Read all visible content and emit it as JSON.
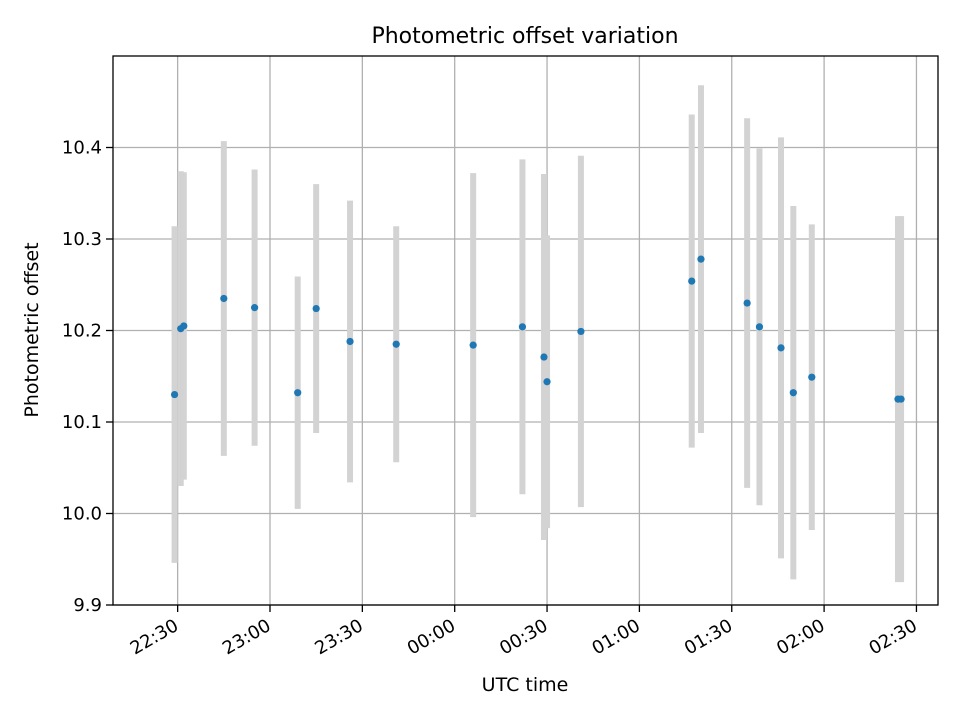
{
  "chart_data": {
    "type": "scatter",
    "title": "Photometric offset variation",
    "xlabel": "UTC time",
    "ylabel": "Photometric offset",
    "grid": true,
    "ylim": [
      9.9,
      10.5
    ],
    "xlim": [
      "22:09",
      "02:37"
    ],
    "x_tick_labels": [
      "22:30",
      "23:00",
      "23:30",
      "00:00",
      "00:30",
      "01:00",
      "01:30",
      "02:00",
      "02:30"
    ],
    "y_tick_labels": [
      "9.9",
      "10.0",
      "10.1",
      "10.2",
      "10.3",
      "10.4"
    ],
    "marker_color": "#1f77b4",
    "errorbar_color": "#d3d3d3",
    "points": [
      {
        "time": "22:29",
        "y": 10.13,
        "err": 0.184
      },
      {
        "time": "22:31",
        "y": 10.202,
        "err": 0.172
      },
      {
        "time": "22:32",
        "y": 10.205,
        "err": 0.168
      },
      {
        "time": "22:45",
        "y": 10.235,
        "err": 0.172
      },
      {
        "time": "22:55",
        "y": 10.225,
        "err": 0.151
      },
      {
        "time": "23:09",
        "y": 10.132,
        "err": 0.127
      },
      {
        "time": "23:15",
        "y": 10.224,
        "err": 0.136
      },
      {
        "time": "23:26",
        "y": 10.188,
        "err": 0.154
      },
      {
        "time": "23:41",
        "y": 10.185,
        "err": 0.129
      },
      {
        "time": "00:06",
        "y": 10.184,
        "err": 0.188
      },
      {
        "time": "00:22",
        "y": 10.204,
        "err": 0.183
      },
      {
        "time": "00:29",
        "y": 10.171,
        "err": 0.2
      },
      {
        "time": "00:30",
        "y": 10.144,
        "err": 0.16
      },
      {
        "time": "00:41",
        "y": 10.199,
        "err": 0.192
      },
      {
        "time": "01:17",
        "y": 10.254,
        "err": 0.182
      },
      {
        "time": "01:20",
        "y": 10.278,
        "err": 0.19
      },
      {
        "time": "01:35",
        "y": 10.23,
        "err": 0.202
      },
      {
        "time": "01:39",
        "y": 10.204,
        "err": 0.195
      },
      {
        "time": "01:46",
        "y": 10.181,
        "err": 0.23
      },
      {
        "time": "01:50",
        "y": 10.132,
        "err": 0.204
      },
      {
        "time": "01:56",
        "y": 10.149,
        "err": 0.167
      },
      {
        "time": "02:24",
        "y": 10.125,
        "err": 0.2
      },
      {
        "time": "02:25",
        "y": 10.125,
        "err": 0.2
      }
    ]
  }
}
